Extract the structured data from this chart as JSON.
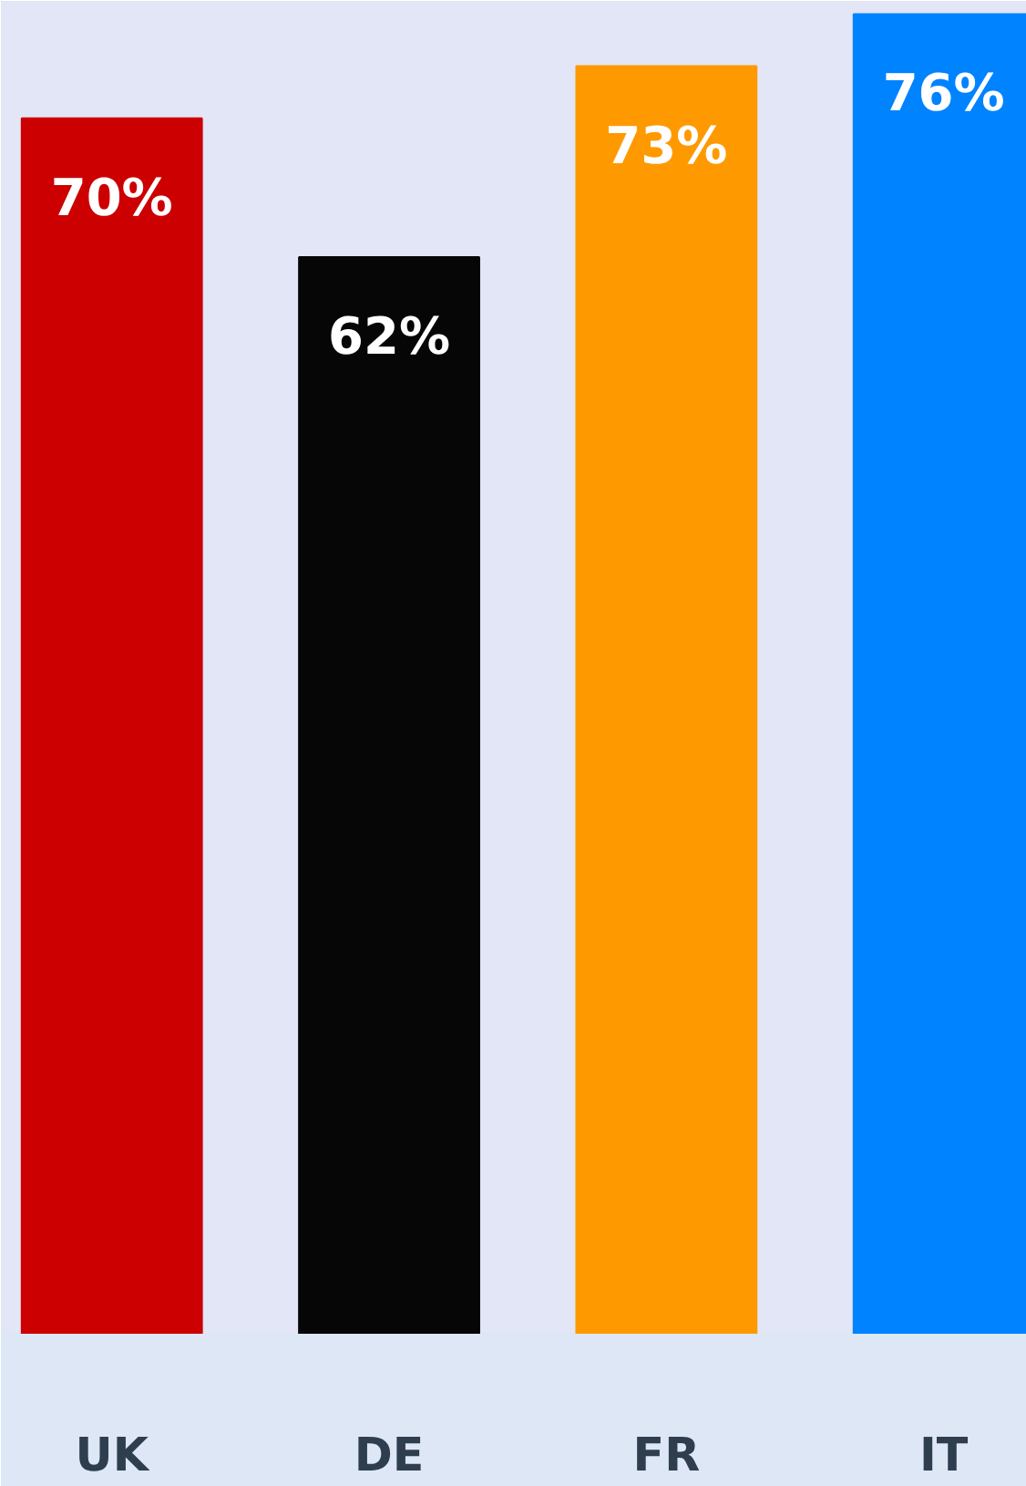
{
  "chart_data": {
    "type": "bar",
    "categories": [
      "UK",
      "DE",
      "FR",
      "IT"
    ],
    "values": [
      70,
      62,
      73,
      76
    ],
    "colors": [
      "#cc0000",
      "#060606",
      "#ff9900",
      "#0083ff"
    ],
    "value_labels": [
      "70%",
      "62%",
      "73%",
      "76%"
    ],
    "tick_labels": "x",
    "grid": false
  }
}
